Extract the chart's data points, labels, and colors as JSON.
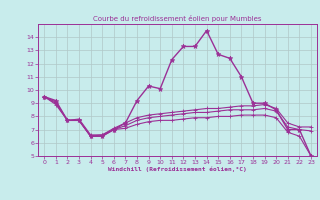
{
  "title": "Courbe du refroidissement éolien pour Mumbles",
  "xlabel": "Windchill (Refroidissement éolien,°C)",
  "bg_color": "#c8ecec",
  "line_color": "#9b3096",
  "grid_color": "#b0c8c8",
  "xlim": [
    -0.5,
    23.5
  ],
  "ylim": [
    5,
    15
  ],
  "yticks": [
    5,
    6,
    7,
    8,
    9,
    10,
    11,
    12,
    13,
    14
  ],
  "xticks": [
    0,
    1,
    2,
    3,
    4,
    5,
    6,
    7,
    8,
    9,
    10,
    11,
    12,
    13,
    14,
    15,
    16,
    17,
    18,
    19,
    20,
    21,
    22,
    23
  ],
  "series1_x": [
    0,
    1,
    2,
    3,
    4,
    5,
    6,
    7,
    8,
    9,
    10,
    11,
    12,
    13,
    14,
    15,
    16,
    17,
    18,
    19,
    20,
    21,
    22,
    23
  ],
  "series1_y": [
    9.5,
    9.2,
    7.7,
    7.7,
    6.5,
    6.5,
    7.0,
    7.5,
    9.2,
    10.3,
    10.1,
    12.3,
    13.3,
    13.3,
    14.5,
    12.7,
    12.4,
    11.0,
    9.0,
    9.0,
    8.5,
    7.0,
    7.0,
    5.0
  ],
  "series2_x": [
    0,
    1,
    2,
    3,
    4,
    5,
    6,
    7,
    8,
    9,
    10,
    11,
    12,
    13,
    14,
    15,
    16,
    17,
    18,
    19,
    20,
    21,
    22,
    23
  ],
  "series2_y": [
    9.5,
    9.1,
    7.7,
    7.8,
    6.6,
    6.6,
    7.1,
    7.5,
    7.9,
    8.1,
    8.2,
    8.3,
    8.4,
    8.5,
    8.6,
    8.6,
    8.7,
    8.8,
    8.8,
    8.9,
    8.6,
    7.5,
    7.2,
    7.2
  ],
  "series3_x": [
    0,
    1,
    2,
    3,
    4,
    5,
    6,
    7,
    8,
    9,
    10,
    11,
    12,
    13,
    14,
    15,
    16,
    17,
    18,
    19,
    20,
    21,
    22,
    23
  ],
  "series3_y": [
    9.5,
    9.0,
    7.7,
    7.7,
    6.5,
    6.6,
    7.0,
    7.3,
    7.7,
    7.9,
    8.0,
    8.1,
    8.2,
    8.3,
    8.3,
    8.4,
    8.5,
    8.5,
    8.5,
    8.6,
    8.4,
    7.2,
    7.0,
    6.9
  ],
  "series4_x": [
    0,
    1,
    2,
    3,
    4,
    5,
    6,
    7,
    8,
    9,
    10,
    11,
    12,
    13,
    14,
    15,
    16,
    17,
    18,
    19,
    20,
    21,
    22,
    23
  ],
  "series4_y": [
    9.5,
    8.9,
    7.7,
    7.7,
    6.5,
    6.5,
    7.0,
    7.1,
    7.4,
    7.6,
    7.7,
    7.7,
    7.8,
    7.9,
    7.9,
    8.0,
    8.0,
    8.1,
    8.1,
    8.1,
    7.9,
    6.8,
    6.5,
    5.0
  ]
}
